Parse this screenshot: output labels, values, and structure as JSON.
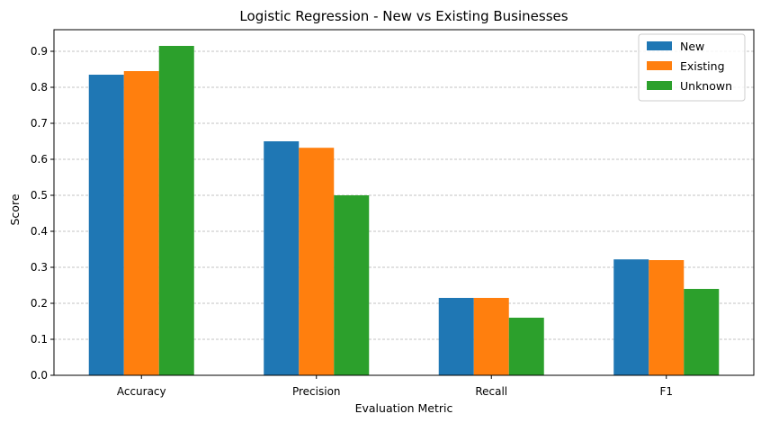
{
  "chart_data": {
    "type": "bar",
    "title": "Logistic Regression - New vs Existing Businesses",
    "xlabel": "Evaluation Metric",
    "ylabel": "Score",
    "categories": [
      "Accuracy",
      "Precision",
      "Recall",
      "F1"
    ],
    "series": [
      {
        "name": "New",
        "color": "#1f77b4",
        "values": [
          0.835,
          0.65,
          0.215,
          0.322
        ]
      },
      {
        "name": "Existing",
        "color": "#ff7f0e",
        "values": [
          0.845,
          0.632,
          0.215,
          0.32
        ]
      },
      {
        "name": "Unknown",
        "color": "#2ca02c",
        "values": [
          0.915,
          0.5,
          0.16,
          0.24
        ]
      }
    ],
    "ylim": [
      0,
      0.96
    ],
    "yticks": [
      "0.0",
      "0.1",
      "0.2",
      "0.3",
      "0.4",
      "0.5",
      "0.6",
      "0.7",
      "0.8",
      "0.9"
    ],
    "grid": "y-dashed",
    "legend_position": "top-right"
  }
}
